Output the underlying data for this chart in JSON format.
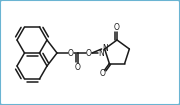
{
  "bg_color": "#ffffff",
  "border_color": "#6ab4d2",
  "line_color": "#1a1a1a",
  "line_width": 1.1,
  "fig_width": 1.8,
  "fig_height": 1.05,
  "dpi": 100,
  "xlim": [
    0,
    180
  ],
  "ylim": [
    0,
    105
  ]
}
